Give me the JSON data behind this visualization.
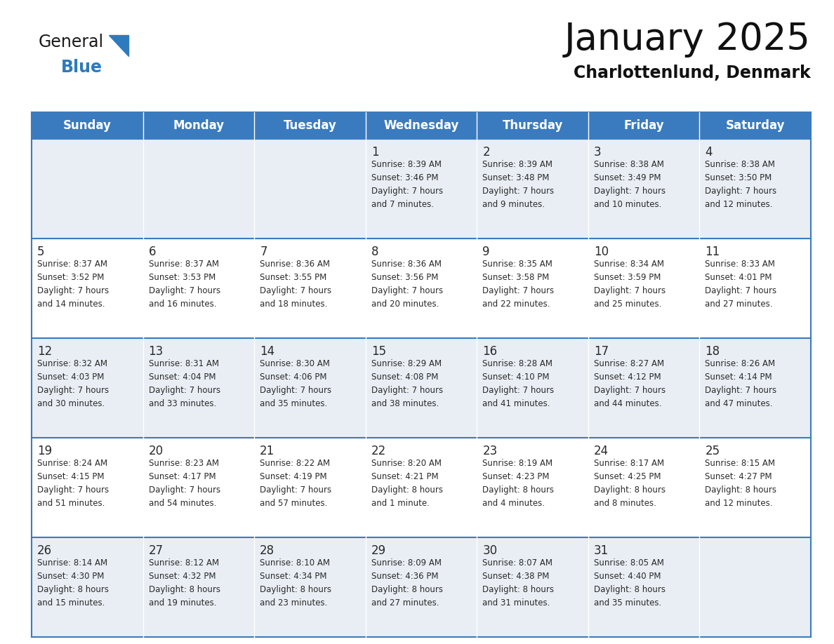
{
  "title": "January 2025",
  "subtitle": "Charlottenlund, Denmark",
  "header_color": "#3a7bbf",
  "header_text_color": "#ffffff",
  "cell_bg_even": "#e8eef4",
  "cell_bg_odd": "#ffffff",
  "line_color": "#3a7bbf",
  "text_color": "#2a2a2a",
  "days_of_week": [
    "Sunday",
    "Monday",
    "Tuesday",
    "Wednesday",
    "Thursday",
    "Friday",
    "Saturday"
  ],
  "weeks": [
    [
      {
        "day": null,
        "info": null
      },
      {
        "day": null,
        "info": null
      },
      {
        "day": null,
        "info": null
      },
      {
        "day": "1",
        "info": "Sunrise: 8:39 AM\nSunset: 3:46 PM\nDaylight: 7 hours\nand 7 minutes."
      },
      {
        "day": "2",
        "info": "Sunrise: 8:39 AM\nSunset: 3:48 PM\nDaylight: 7 hours\nand 9 minutes."
      },
      {
        "day": "3",
        "info": "Sunrise: 8:38 AM\nSunset: 3:49 PM\nDaylight: 7 hours\nand 10 minutes."
      },
      {
        "day": "4",
        "info": "Sunrise: 8:38 AM\nSunset: 3:50 PM\nDaylight: 7 hours\nand 12 minutes."
      }
    ],
    [
      {
        "day": "5",
        "info": "Sunrise: 8:37 AM\nSunset: 3:52 PM\nDaylight: 7 hours\nand 14 minutes."
      },
      {
        "day": "6",
        "info": "Sunrise: 8:37 AM\nSunset: 3:53 PM\nDaylight: 7 hours\nand 16 minutes."
      },
      {
        "day": "7",
        "info": "Sunrise: 8:36 AM\nSunset: 3:55 PM\nDaylight: 7 hours\nand 18 minutes."
      },
      {
        "day": "8",
        "info": "Sunrise: 8:36 AM\nSunset: 3:56 PM\nDaylight: 7 hours\nand 20 minutes."
      },
      {
        "day": "9",
        "info": "Sunrise: 8:35 AM\nSunset: 3:58 PM\nDaylight: 7 hours\nand 22 minutes."
      },
      {
        "day": "10",
        "info": "Sunrise: 8:34 AM\nSunset: 3:59 PM\nDaylight: 7 hours\nand 25 minutes."
      },
      {
        "day": "11",
        "info": "Sunrise: 8:33 AM\nSunset: 4:01 PM\nDaylight: 7 hours\nand 27 minutes."
      }
    ],
    [
      {
        "day": "12",
        "info": "Sunrise: 8:32 AM\nSunset: 4:03 PM\nDaylight: 7 hours\nand 30 minutes."
      },
      {
        "day": "13",
        "info": "Sunrise: 8:31 AM\nSunset: 4:04 PM\nDaylight: 7 hours\nand 33 minutes."
      },
      {
        "day": "14",
        "info": "Sunrise: 8:30 AM\nSunset: 4:06 PM\nDaylight: 7 hours\nand 35 minutes."
      },
      {
        "day": "15",
        "info": "Sunrise: 8:29 AM\nSunset: 4:08 PM\nDaylight: 7 hours\nand 38 minutes."
      },
      {
        "day": "16",
        "info": "Sunrise: 8:28 AM\nSunset: 4:10 PM\nDaylight: 7 hours\nand 41 minutes."
      },
      {
        "day": "17",
        "info": "Sunrise: 8:27 AM\nSunset: 4:12 PM\nDaylight: 7 hours\nand 44 minutes."
      },
      {
        "day": "18",
        "info": "Sunrise: 8:26 AM\nSunset: 4:14 PM\nDaylight: 7 hours\nand 47 minutes."
      }
    ],
    [
      {
        "day": "19",
        "info": "Sunrise: 8:24 AM\nSunset: 4:15 PM\nDaylight: 7 hours\nand 51 minutes."
      },
      {
        "day": "20",
        "info": "Sunrise: 8:23 AM\nSunset: 4:17 PM\nDaylight: 7 hours\nand 54 minutes."
      },
      {
        "day": "21",
        "info": "Sunrise: 8:22 AM\nSunset: 4:19 PM\nDaylight: 7 hours\nand 57 minutes."
      },
      {
        "day": "22",
        "info": "Sunrise: 8:20 AM\nSunset: 4:21 PM\nDaylight: 8 hours\nand 1 minute."
      },
      {
        "day": "23",
        "info": "Sunrise: 8:19 AM\nSunset: 4:23 PM\nDaylight: 8 hours\nand 4 minutes."
      },
      {
        "day": "24",
        "info": "Sunrise: 8:17 AM\nSunset: 4:25 PM\nDaylight: 8 hours\nand 8 minutes."
      },
      {
        "day": "25",
        "info": "Sunrise: 8:15 AM\nSunset: 4:27 PM\nDaylight: 8 hours\nand 12 minutes."
      }
    ],
    [
      {
        "day": "26",
        "info": "Sunrise: 8:14 AM\nSunset: 4:30 PM\nDaylight: 8 hours\nand 15 minutes."
      },
      {
        "day": "27",
        "info": "Sunrise: 8:12 AM\nSunset: 4:32 PM\nDaylight: 8 hours\nand 19 minutes."
      },
      {
        "day": "28",
        "info": "Sunrise: 8:10 AM\nSunset: 4:34 PM\nDaylight: 8 hours\nand 23 minutes."
      },
      {
        "day": "29",
        "info": "Sunrise: 8:09 AM\nSunset: 4:36 PM\nDaylight: 8 hours\nand 27 minutes."
      },
      {
        "day": "30",
        "info": "Sunrise: 8:07 AM\nSunset: 4:38 PM\nDaylight: 8 hours\nand 31 minutes."
      },
      {
        "day": "31",
        "info": "Sunrise: 8:05 AM\nSunset: 4:40 PM\nDaylight: 8 hours\nand 35 minutes."
      },
      {
        "day": null,
        "info": null
      }
    ]
  ],
  "logo_general_color": "#1a1a1a",
  "logo_blue_color": "#2e7abd",
  "logo_triangle_color": "#2e7abd",
  "title_fontsize": 38,
  "subtitle_fontsize": 17,
  "header_fontsize": 12,
  "day_number_fontsize": 12,
  "cell_text_fontsize": 8.5
}
